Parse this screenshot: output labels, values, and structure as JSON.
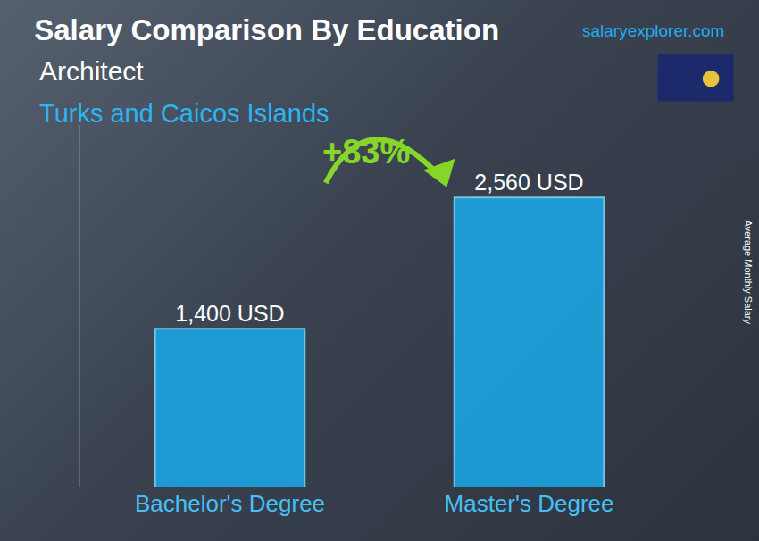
{
  "chart_data": {
    "type": "bar",
    "title": "Salary Comparison By Education",
    "subtitle": "Architect",
    "location": "Turks and Caicos Islands",
    "source": "salaryexplorer.com",
    "y_label": "Average Monthly Salary",
    "categories": [
      "Bachelor's Degree",
      "Master's Degree"
    ],
    "values": [
      1400,
      2560
    ],
    "value_labels": [
      "1,400 USD",
      "2,560 USD"
    ],
    "data_labels": true,
    "annotations": [
      "+83%"
    ],
    "color": "#1aa7e6",
    "ylim": [
      0,
      3200
    ],
    "yticks": [],
    "tick_labels": "x",
    "grid": false
  }
}
